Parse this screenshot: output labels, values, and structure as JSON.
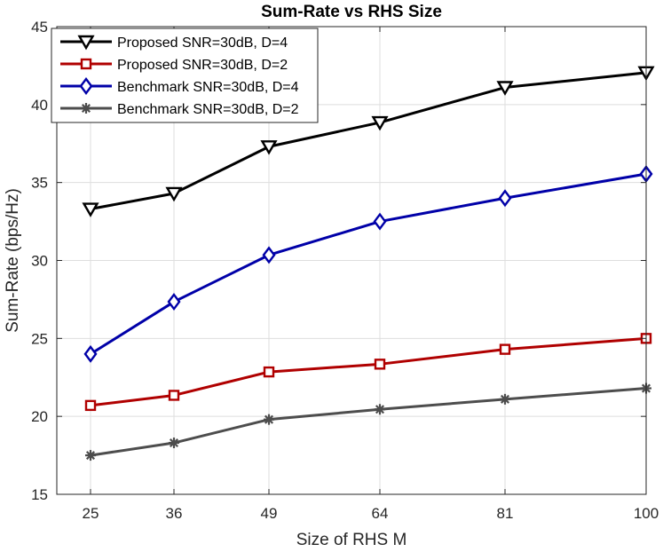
{
  "chart_data": {
    "type": "line",
    "title": "Sum-Rate vs RHS Size",
    "xlabel": "Size of RHS M",
    "ylabel": "Sum-Rate (bps/Hz)",
    "categories": [
      "25",
      "36",
      "49",
      "64",
      "81",
      "100"
    ],
    "ylim": [
      15,
      45
    ],
    "yticks": [
      "15",
      "20",
      "25",
      "30",
      "35",
      "40",
      "45"
    ],
    "grid": true,
    "legend_position": "top-left",
    "series": [
      {
        "name": "Proposed SNR=30dB, D=4",
        "values": [
          33.3,
          34.3,
          37.3,
          38.85,
          41.1,
          42.05
        ],
        "color": "#000000",
        "marker": "triangle-down"
      },
      {
        "name": "Proposed SNR=30dB, D=2",
        "values": [
          20.7,
          21.35,
          22.85,
          23.35,
          24.3,
          25.0
        ],
        "color": "#b00000",
        "marker": "square"
      },
      {
        "name": "Benchmark SNR=30dB, D=4",
        "values": [
          24.0,
          27.35,
          30.35,
          32.5,
          34.0,
          35.55
        ],
        "color": "#0000a8",
        "marker": "diamond"
      },
      {
        "name": "Benchmark SNR=30dB, D=2",
        "values": [
          17.5,
          18.3,
          19.8,
          20.45,
          21.1,
          21.8
        ],
        "color": "#4d4d4d",
        "marker": "asterisk"
      }
    ]
  }
}
